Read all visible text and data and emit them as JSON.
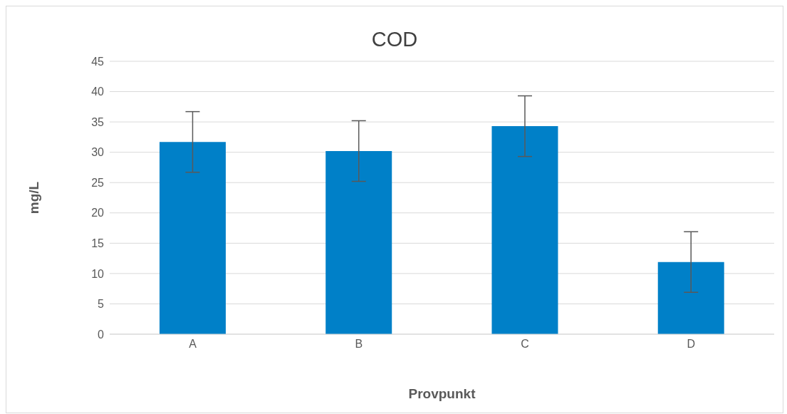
{
  "chart_data": {
    "type": "bar",
    "title": "COD",
    "xlabel": "Provpunkt",
    "ylabel": "mg/L",
    "categories": [
      "A",
      "B",
      "C",
      "D"
    ],
    "values": [
      31.7,
      30.2,
      34.3,
      11.9
    ],
    "errors": [
      5,
      5,
      5,
      5
    ],
    "color": "#0080c8",
    "ylim": [
      0,
      45
    ],
    "yticks": [
      0,
      5,
      10,
      15,
      20,
      25,
      30,
      35,
      40,
      45
    ],
    "grid": "y"
  }
}
